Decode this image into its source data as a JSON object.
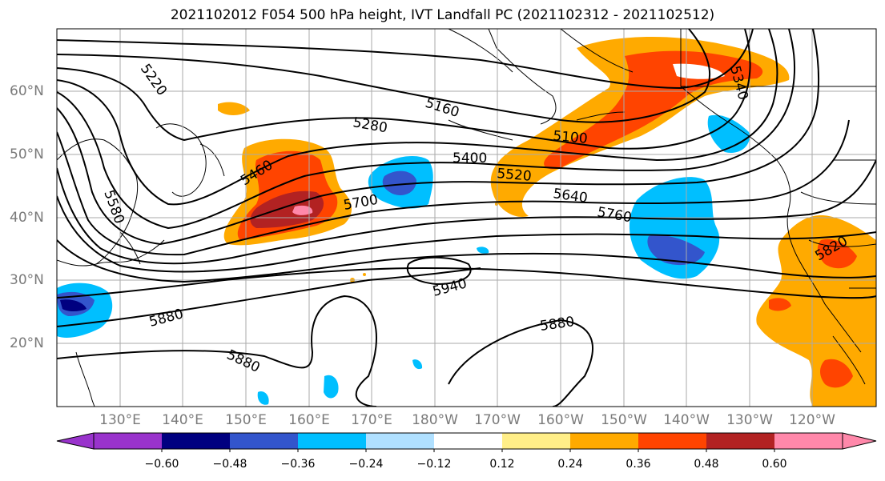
{
  "title": "2021102012 F054 500 hPa height, IVT Landfall PC (2021102312 - 2021102512)",
  "lat_labels": [
    "60°N",
    "50°N",
    "40°N",
    "30°N",
    "20°N"
  ],
  "lon_labels": [
    "130°E",
    "140°E",
    "150°E",
    "160°E",
    "170°E",
    "180°W",
    "170°W",
    "160°W",
    "150°W",
    "140°W",
    "130°W",
    "120°W"
  ],
  "contour_labels": [
    "5220",
    "5160",
    "5280",
    "5100",
    "5340",
    "5400",
    "5460",
    "5520",
    "5580",
    "5640",
    "5700",
    "5760",
    "5820",
    "5940",
    "5880",
    "5880",
    "5880",
    "5880"
  ],
  "colorbar": {
    "ticks": [
      "−0.60",
      "−0.48",
      "−0.36",
      "−0.24",
      "−0.12",
      "0.12",
      "0.24",
      "0.36",
      "0.48",
      "0.60"
    ],
    "colors": [
      "#9933cc",
      "#000080",
      "#3355cc",
      "#00bfff",
      "#b0e0ff",
      "#ffffff",
      "#ffee88",
      "#ffaa00",
      "#ff4400",
      "#b22222",
      "#ff88aa"
    ]
  }
}
